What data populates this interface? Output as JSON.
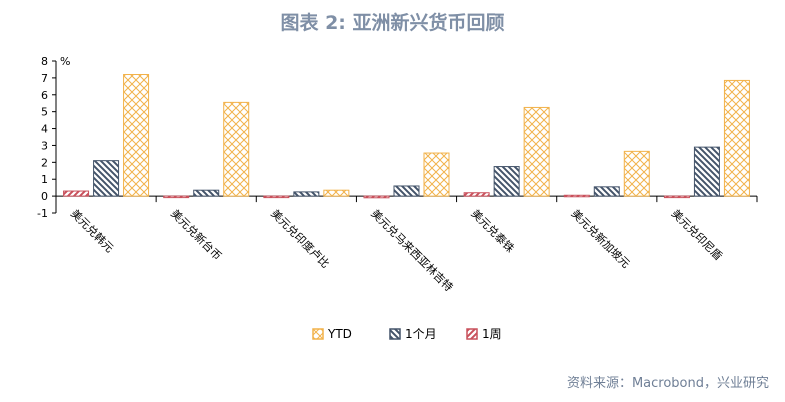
{
  "title": "图表 2: 亚洲新兴货币回顾",
  "source": "资料来源：Macrobond，兴业研究",
  "chart_data": {
    "type": "bar",
    "title": "图表 2: 亚洲新兴货币回顾",
    "ylabel": "%",
    "ylim": [
      -1,
      8
    ],
    "yticks": [
      -1,
      0,
      1,
      2,
      3,
      4,
      5,
      6,
      7,
      8
    ],
    "grid": false,
    "legend_position": "bottom",
    "categories": [
      "美元兑韩元",
      "美元兑新台币",
      "美元兑印度卢比",
      "美元兑马来西亚林吉特",
      "美元兑泰铢",
      "美元兑新加坡元",
      "美元兑印尼盾"
    ],
    "series": [
      {
        "name": "1周",
        "color": "#c9515c",
        "pattern": "diag-up",
        "values": [
          0.3,
          -0.05,
          -0.05,
          -0.1,
          0.2,
          0.05,
          -0.05
        ]
      },
      {
        "name": "1个月",
        "color": "#44546a",
        "pattern": "diag-down",
        "values": [
          2.1,
          0.35,
          0.25,
          0.6,
          1.75,
          0.55,
          2.9
        ]
      },
      {
        "name": "YTD",
        "color": "#f2b24a",
        "pattern": "cross",
        "values": [
          7.2,
          5.55,
          0.35,
          2.55,
          5.25,
          2.65,
          6.85
        ]
      }
    ],
    "legend_order": [
      "YTD",
      "1个月",
      "1周"
    ]
  }
}
